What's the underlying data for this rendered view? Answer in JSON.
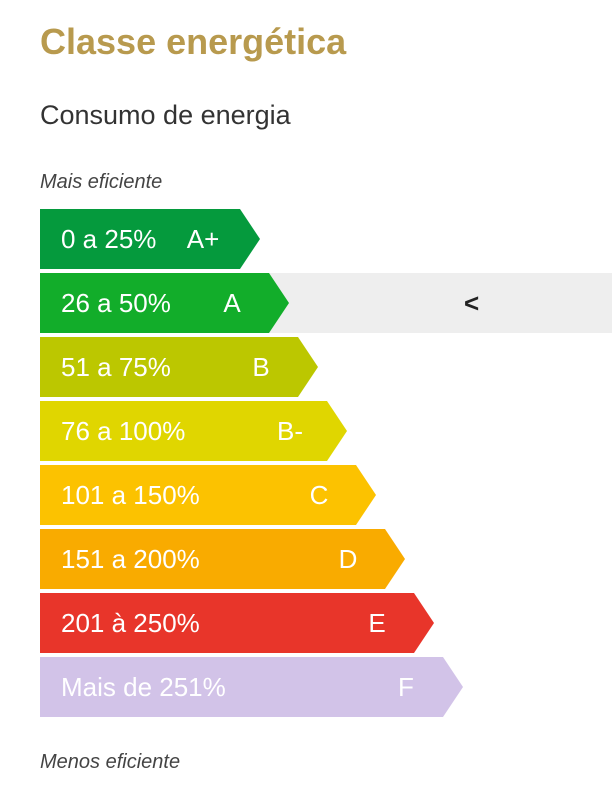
{
  "header": {
    "title": "Classe energética",
    "subtitle": "Consumo de energia"
  },
  "labels": {
    "more_efficient": "Mais eficiente",
    "less_efficient": "Menos eficiente"
  },
  "current_marker": "<",
  "colors": {
    "title": "#b89a4e"
  },
  "ratings": [
    {
      "range": "0 a 25%",
      "class": "A+",
      "color": "#059a3d",
      "text_color": "#ffffff",
      "current": false
    },
    {
      "range": "26 a 50%",
      "class": "A",
      "color": "#12ad2a",
      "text_color": "#ffffff",
      "current": true
    },
    {
      "range": "51 a 75%",
      "class": "B",
      "color": "#bcc700",
      "text_color": "#ffffff",
      "current": false
    },
    {
      "range": "76 a 100%",
      "class": "B-",
      "color": "#e0d600",
      "text_color": "#ffffff",
      "current": false
    },
    {
      "range": "101 a 150%",
      "class": "C",
      "color": "#fcc200",
      "text_color": "#ffffff",
      "current": false
    },
    {
      "range": "151 a 200%",
      "class": "D",
      "color": "#f9ab00",
      "text_color": "#ffffff",
      "current": false
    },
    {
      "range": "201 à 250%",
      "class": "E",
      "color": "#e8352a",
      "text_color": "#ffffff",
      "current": false
    },
    {
      "range": "Mais de 251%",
      "class": "F",
      "color": "#d2c3e8",
      "text_color": "#ffffff",
      "current": false
    }
  ]
}
